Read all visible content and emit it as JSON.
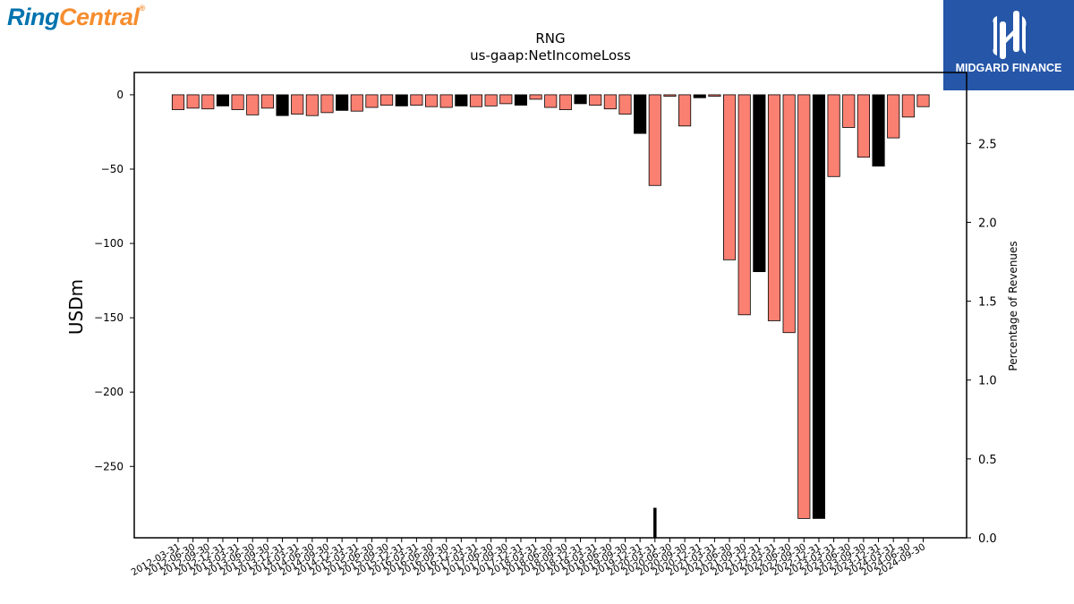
{
  "logos": {
    "left_part1": "Ring",
    "left_part2": "Central",
    "left_mark": "®",
    "right_text": "MIDGARD FINANCE"
  },
  "chart_data": {
    "type": "bar",
    "title": "RNG",
    "subtitle": "us-gaap:NetIncomeLoss",
    "ylabel": "USDm",
    "y2label": "Percentage of Revenues",
    "ylim": [
      -298,
      15
    ],
    "y2lim": [
      0,
      2.95
    ],
    "yticks": [
      0,
      -50,
      -100,
      -150,
      -200,
      -250
    ],
    "y2ticks": [
      0.0,
      0.5,
      1.0,
      1.5,
      2.0,
      2.5
    ],
    "colors": {
      "quarterly": "#fa8072",
      "annual": "#000000",
      "edge": "#000000"
    },
    "categories": [
      "2012-03-31",
      "2012-06-30",
      "2012-09-30",
      "2012-12-31",
      "2013-03-31",
      "2013-06-30",
      "2013-09-30",
      "2013-12-31",
      "2014-03-31",
      "2014-06-30",
      "2014-09-30",
      "2014-12-31",
      "2015-03-31",
      "2015-06-30",
      "2015-09-30",
      "2015-12-31",
      "2016-03-31",
      "2016-06-30",
      "2016-09-30",
      "2016-12-31",
      "2017-03-31",
      "2017-06-30",
      "2017-09-30",
      "2017-12-31",
      "2018-03-31",
      "2018-06-30",
      "2018-09-30",
      "2018-12-31",
      "2019-03-31",
      "2019-06-30",
      "2019-09-30",
      "2019-12-31",
      "2020-03-31",
      "2020-06-30",
      "2020-09-30",
      "2020-12-31",
      "2021-03-31",
      "2021-06-30",
      "2021-09-30",
      "2021-12-31",
      "2022-03-31",
      "2022-06-30",
      "2022-09-30",
      "2022-12-31",
      "2023-03-31",
      "2023-06-30",
      "2023-09-30",
      "2023-12-31",
      "2024-03-31",
      "2024-06-30",
      "2024-09-30"
    ],
    "values": [
      -10,
      -9,
      -9.5,
      -7.5,
      -10,
      -13.5,
      -9,
      -14,
      -13,
      -14,
      -12,
      -10.5,
      -11,
      -8.5,
      -7,
      -7.5,
      -7,
      -8,
      -8.5,
      -7.5,
      -8,
      -7.5,
      -6,
      -7,
      -3,
      -8.5,
      -10,
      -6,
      -7,
      -9.5,
      -13,
      -26,
      -61,
      -1,
      -21,
      -2,
      -1,
      -111,
      -148,
      -119,
      -152,
      -160,
      -285,
      -285,
      -55,
      -22,
      -42,
      -48,
      -29,
      -15,
      -8
    ],
    "annual": [
      false,
      false,
      false,
      true,
      false,
      false,
      false,
      true,
      false,
      false,
      false,
      true,
      false,
      false,
      false,
      true,
      false,
      false,
      false,
      true,
      false,
      false,
      false,
      true,
      false,
      false,
      false,
      true,
      false,
      false,
      false,
      true,
      false,
      false,
      false,
      true,
      false,
      false,
      false,
      true,
      false,
      false,
      false,
      true,
      false,
      false,
      false,
      true,
      false,
      false,
      false
    ],
    "pct_marker": {
      "x": "2020-03-31",
      "value": 0.19
    }
  }
}
